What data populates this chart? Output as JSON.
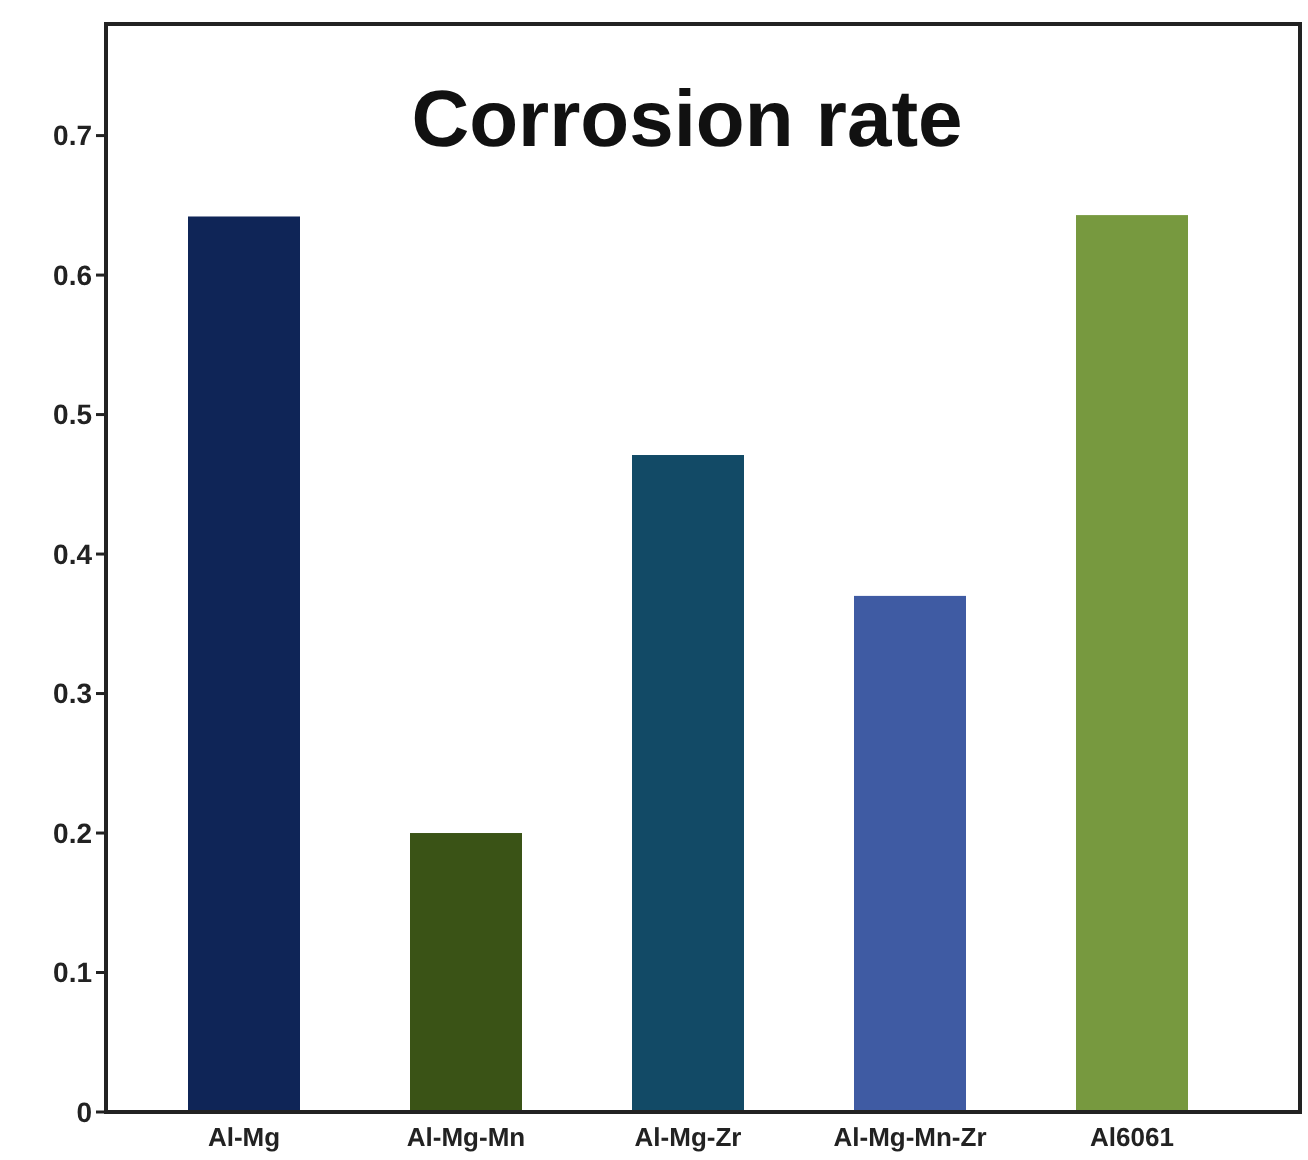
{
  "chart_data": {
    "type": "bar",
    "title": "Corrosion rate",
    "categories": [
      "Al-Mg",
      "Al-Mg-Mn",
      "Al-Mg-Zr",
      "Al-Mg-Mn-Zr",
      "Al6061"
    ],
    "values": [
      0.642,
      0.2,
      0.471,
      0.37,
      0.643
    ],
    "colors": [
      "#0f2557",
      "#3a5316",
      "#124a66",
      "#3f5ba3",
      "#77993f"
    ],
    "ylim": [
      0,
      0.78
    ],
    "yticks": [
      0,
      0.1,
      0.2,
      0.3,
      0.4,
      0.5,
      0.6,
      0.7
    ],
    "grid": false
  }
}
